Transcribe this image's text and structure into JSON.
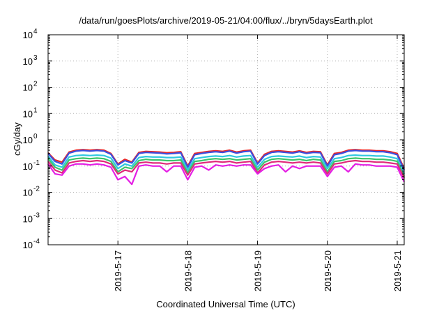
{
  "chart_data": {
    "type": "line",
    "title": "/data/run/goesPlots/archive/2019-05-21/04:00/flux/../bryn/5daysEarth.plot",
    "xlabel": "Coordinated Universal Time (UTC)",
    "ylabel": "cGy/day",
    "yscale": "log",
    "ylim": [
      0.0001,
      10000
    ],
    "xlim": [
      0.0,
      5.1
    ],
    "grid": true,
    "legend": "none",
    "y_ticks": [
      {
        "value": 0.0001,
        "base": "10",
        "exp": "-4"
      },
      {
        "value": 0.001,
        "base": "10",
        "exp": "-3"
      },
      {
        "value": 0.01,
        "base": "10",
        "exp": "-2"
      },
      {
        "value": 0.1,
        "base": "10",
        "exp": "-1"
      },
      {
        "value": 1,
        "base": "10",
        "exp": "0"
      },
      {
        "value": 10,
        "base": "10",
        "exp": "1"
      },
      {
        "value": 100,
        "base": "10",
        "exp": "2"
      },
      {
        "value": 1000,
        "base": "10",
        "exp": "3"
      },
      {
        "value": 10000,
        "base": "10",
        "exp": "4"
      }
    ],
    "x_ticks": [
      {
        "value": 1,
        "label": "2019-5-17"
      },
      {
        "value": 2,
        "label": "2019-5-18"
      },
      {
        "value": 3,
        "label": "2019-5-19"
      },
      {
        "value": 4,
        "label": "2019-5-20"
      },
      {
        "value": 5,
        "label": "2019-5-21"
      }
    ],
    "series": [
      {
        "color": "#e8282a",
        "x": [
          0.0,
          0.1,
          0.2,
          0.3,
          0.4,
          0.5,
          0.6,
          0.7,
          0.8,
          0.9,
          1.0,
          1.1,
          1.2,
          1.3,
          1.4,
          1.5,
          1.6,
          1.7,
          1.8,
          1.9,
          2.0,
          2.1,
          2.2,
          2.3,
          2.4,
          2.5,
          2.6,
          2.7,
          2.8,
          2.9,
          3.0,
          3.1,
          3.2,
          3.3,
          3.4,
          3.5,
          3.6,
          3.7,
          3.8,
          3.9,
          4.0,
          4.1,
          4.2,
          4.3,
          4.4,
          4.5,
          4.6,
          4.7,
          4.8,
          4.9,
          5.0,
          5.1
        ],
        "values": [
          0.32,
          0.17,
          0.14,
          0.34,
          0.4,
          0.42,
          0.4,
          0.42,
          0.4,
          0.3,
          0.12,
          0.18,
          0.14,
          0.33,
          0.36,
          0.35,
          0.34,
          0.32,
          0.33,
          0.35,
          0.1,
          0.3,
          0.33,
          0.36,
          0.38,
          0.36,
          0.4,
          0.34,
          0.38,
          0.4,
          0.13,
          0.28,
          0.36,
          0.38,
          0.36,
          0.34,
          0.38,
          0.33,
          0.36,
          0.35,
          0.11,
          0.3,
          0.33,
          0.4,
          0.42,
          0.4,
          0.4,
          0.38,
          0.38,
          0.35,
          0.3,
          0.08
        ]
      },
      {
        "color": "#3a4fe0",
        "x": [
          0.0,
          0.1,
          0.2,
          0.3,
          0.4,
          0.5,
          0.6,
          0.7,
          0.8,
          0.9,
          1.0,
          1.1,
          1.2,
          1.3,
          1.4,
          1.5,
          1.6,
          1.7,
          1.8,
          1.9,
          2.0,
          2.1,
          2.2,
          2.3,
          2.4,
          2.5,
          2.6,
          2.7,
          2.8,
          2.9,
          3.0,
          3.1,
          3.2,
          3.3,
          3.4,
          3.5,
          3.6,
          3.7,
          3.8,
          3.9,
          4.0,
          4.1,
          4.2,
          4.3,
          4.4,
          4.5,
          4.6,
          4.7,
          4.8,
          4.9,
          5.0,
          5.1
        ],
        "values": [
          0.3,
          0.15,
          0.12,
          0.31,
          0.37,
          0.39,
          0.37,
          0.39,
          0.37,
          0.28,
          0.11,
          0.16,
          0.13,
          0.3,
          0.33,
          0.32,
          0.31,
          0.29,
          0.3,
          0.32,
          0.09,
          0.27,
          0.3,
          0.33,
          0.35,
          0.33,
          0.37,
          0.31,
          0.35,
          0.37,
          0.12,
          0.25,
          0.33,
          0.35,
          0.33,
          0.31,
          0.35,
          0.3,
          0.33,
          0.32,
          0.1,
          0.27,
          0.3,
          0.37,
          0.39,
          0.37,
          0.37,
          0.35,
          0.35,
          0.32,
          0.27,
          0.07
        ]
      },
      {
        "color": "#2ec8e0",
        "x": [
          0.0,
          0.1,
          0.2,
          0.3,
          0.4,
          0.5,
          0.6,
          0.7,
          0.8,
          0.9,
          1.0,
          1.1,
          1.2,
          1.3,
          1.4,
          1.5,
          1.6,
          1.7,
          1.8,
          1.9,
          2.0,
          2.1,
          2.2,
          2.3,
          2.4,
          2.5,
          2.6,
          2.7,
          2.8,
          2.9,
          3.0,
          3.1,
          3.2,
          3.3,
          3.4,
          3.5,
          3.6,
          3.7,
          3.8,
          3.9,
          4.0,
          4.1,
          4.2,
          4.3,
          4.4,
          4.5,
          4.6,
          4.7,
          4.8,
          4.9,
          5.0,
          5.1
        ],
        "values": [
          0.24,
          0.11,
          0.09,
          0.22,
          0.25,
          0.26,
          0.25,
          0.26,
          0.25,
          0.2,
          0.08,
          0.12,
          0.1,
          0.21,
          0.23,
          0.22,
          0.22,
          0.21,
          0.21,
          0.22,
          0.07,
          0.19,
          0.21,
          0.23,
          0.24,
          0.23,
          0.25,
          0.22,
          0.24,
          0.25,
          0.09,
          0.18,
          0.23,
          0.24,
          0.23,
          0.22,
          0.24,
          0.21,
          0.23,
          0.22,
          0.08,
          0.19,
          0.21,
          0.25,
          0.26,
          0.25,
          0.25,
          0.24,
          0.24,
          0.22,
          0.19,
          0.05
        ]
      },
      {
        "color": "#3cc46a",
        "x": [
          0.0,
          0.1,
          0.2,
          0.3,
          0.4,
          0.5,
          0.6,
          0.7,
          0.8,
          0.9,
          1.0,
          1.1,
          1.2,
          1.3,
          1.4,
          1.5,
          1.6,
          1.7,
          1.8,
          1.9,
          2.0,
          2.1,
          2.2,
          2.3,
          2.4,
          2.5,
          2.6,
          2.7,
          2.8,
          2.9,
          3.0,
          3.1,
          3.2,
          3.3,
          3.4,
          3.5,
          3.6,
          3.7,
          3.8,
          3.9,
          4.0,
          4.1,
          4.2,
          4.3,
          4.4,
          4.5,
          4.6,
          4.7,
          4.8,
          4.9,
          5.0,
          5.1
        ],
        "values": [
          0.19,
          0.09,
          0.07,
          0.17,
          0.19,
          0.2,
          0.19,
          0.2,
          0.19,
          0.15,
          0.06,
          0.09,
          0.08,
          0.16,
          0.18,
          0.17,
          0.17,
          0.16,
          0.16,
          0.17,
          0.055,
          0.15,
          0.16,
          0.18,
          0.19,
          0.18,
          0.19,
          0.17,
          0.18,
          0.19,
          0.07,
          0.14,
          0.18,
          0.19,
          0.18,
          0.17,
          0.18,
          0.16,
          0.18,
          0.17,
          0.06,
          0.15,
          0.16,
          0.19,
          0.2,
          0.19,
          0.19,
          0.18,
          0.18,
          0.17,
          0.15,
          0.04
        ]
      },
      {
        "color": "#e02a7a",
        "x": [
          0.0,
          0.1,
          0.2,
          0.3,
          0.4,
          0.5,
          0.6,
          0.7,
          0.8,
          0.9,
          1.0,
          1.1,
          1.2,
          1.3,
          1.4,
          1.5,
          1.6,
          1.7,
          1.8,
          1.9,
          2.0,
          2.1,
          2.2,
          2.3,
          2.4,
          2.5,
          2.6,
          2.7,
          2.8,
          2.9,
          3.0,
          3.1,
          3.2,
          3.3,
          3.4,
          3.5,
          3.6,
          3.7,
          3.8,
          3.9,
          4.0,
          4.1,
          4.2,
          4.3,
          4.4,
          4.5,
          4.6,
          4.7,
          4.8,
          4.9,
          5.0,
          5.1
        ],
        "values": [
          0.15,
          0.07,
          0.055,
          0.13,
          0.15,
          0.16,
          0.15,
          0.16,
          0.15,
          0.12,
          0.05,
          0.07,
          0.06,
          0.13,
          0.14,
          0.13,
          0.13,
          0.12,
          0.13,
          0.13,
          0.045,
          0.12,
          0.13,
          0.14,
          0.15,
          0.14,
          0.15,
          0.13,
          0.14,
          0.15,
          0.055,
          0.11,
          0.14,
          0.15,
          0.14,
          0.13,
          0.14,
          0.13,
          0.14,
          0.13,
          0.05,
          0.12,
          0.13,
          0.15,
          0.16,
          0.15,
          0.15,
          0.14,
          0.14,
          0.13,
          0.12,
          0.035
        ]
      },
      {
        "color": "#e41ee4",
        "x": [
          0.0,
          0.1,
          0.2,
          0.3,
          0.4,
          0.5,
          0.6,
          0.7,
          0.8,
          0.9,
          1.0,
          1.1,
          1.2,
          1.3,
          1.4,
          1.5,
          1.6,
          1.7,
          1.8,
          1.9,
          2.0,
          2.1,
          2.2,
          2.3,
          2.4,
          2.5,
          2.6,
          2.7,
          2.8,
          2.9,
          3.0,
          3.1,
          3.2,
          3.3,
          3.4,
          3.5,
          3.6,
          3.7,
          3.8,
          3.9,
          4.0,
          4.1,
          4.2,
          4.3,
          4.4,
          4.5,
          4.6,
          4.7,
          4.8,
          4.9,
          5.0,
          5.1
        ],
        "values": [
          0.12,
          0.05,
          0.045,
          0.1,
          0.12,
          0.12,
          0.11,
          0.12,
          0.11,
          0.09,
          0.03,
          0.04,
          0.02,
          0.1,
          0.11,
          0.1,
          0.1,
          0.06,
          0.1,
          0.1,
          0.03,
          0.09,
          0.1,
          0.07,
          0.11,
          0.1,
          0.11,
          0.1,
          0.11,
          0.11,
          0.05,
          0.08,
          0.1,
          0.11,
          0.06,
          0.1,
          0.08,
          0.1,
          0.1,
          0.1,
          0.04,
          0.09,
          0.1,
          0.06,
          0.12,
          0.11,
          0.11,
          0.1,
          0.1,
          0.1,
          0.09,
          0.025
        ]
      }
    ]
  }
}
